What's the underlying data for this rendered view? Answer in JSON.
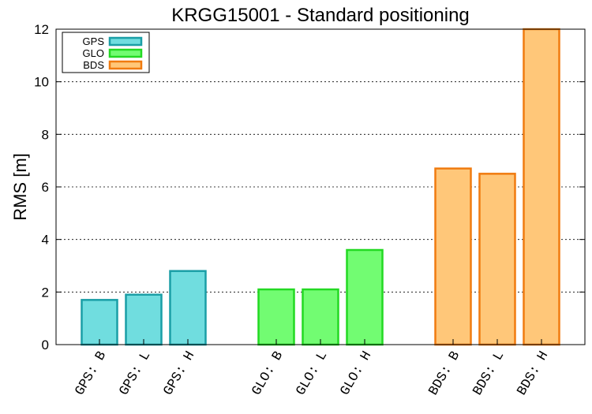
{
  "chart_data": {
    "type": "bar",
    "title": "KRGG15001 - Standard positioning",
    "xlabel": "",
    "ylabel": "RMS [m]",
    "ylim": [
      0,
      12
    ],
    "yticks": [
      0,
      2,
      4,
      6,
      8,
      10,
      12
    ],
    "grid": "horizontal dotted",
    "legend_position": "top-left",
    "groups": [
      {
        "name": "GPS",
        "fill": "#70dddf",
        "stroke": "#1a9ea6",
        "categories": [
          "GPS: B",
          "GPS: L",
          "GPS: H"
        ],
        "values": [
          1.7,
          1.9,
          2.8
        ]
      },
      {
        "name": "GLO",
        "fill": "#72fc72",
        "stroke": "#23d923",
        "categories": [
          "GLO: B",
          "GLO: L",
          "GLO: H"
        ],
        "values": [
          2.1,
          2.1,
          3.6
        ]
      },
      {
        "name": "BDS",
        "fill": "#ffc779",
        "stroke": "#f07b10",
        "categories": [
          "BDS: B",
          "BDS: L",
          "BDS: H"
        ],
        "values": [
          6.7,
          6.5,
          12.0
        ]
      }
    ]
  }
}
